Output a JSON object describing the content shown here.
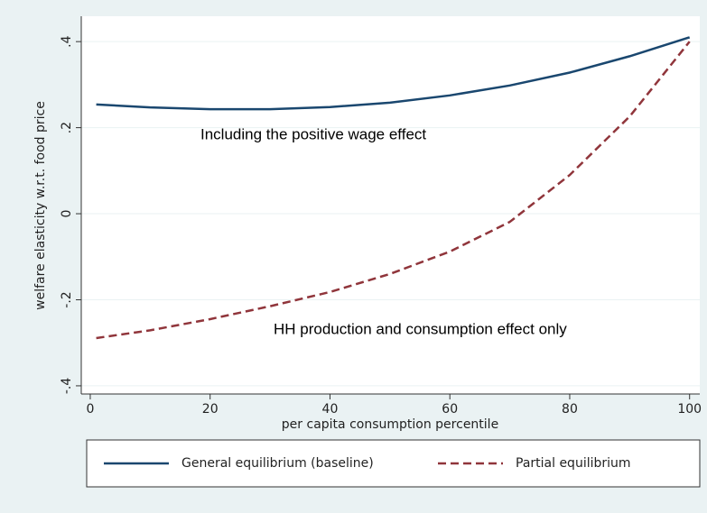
{
  "chart_data": {
    "type": "line",
    "xlabel": "per capita consumption percentile",
    "ylabel": "welfare elasticity w.r.t. food price",
    "x": [
      1,
      10,
      20,
      30,
      40,
      50,
      60,
      70,
      80,
      90,
      100
    ],
    "series": [
      {
        "name": "General equilibrium (baseline)",
        "color": "#1a476f",
        "dash": "solid",
        "values": [
          0.254,
          0.247,
          0.243,
          0.243,
          0.248,
          0.258,
          0.275,
          0.298,
          0.328,
          0.366,
          0.41
        ]
      },
      {
        "name": "Partial equilibrium",
        "color": "#90353b",
        "dash": "dashed",
        "values": [
          -0.289,
          -0.271,
          -0.245,
          -0.215,
          -0.182,
          -0.14,
          -0.088,
          -0.019,
          0.09,
          0.226,
          0.4
        ]
      }
    ],
    "annotations": [
      "Including the positive wage effect",
      "HH production and consumption effect only"
    ],
    "xlim": [
      -1.5,
      101.7
    ],
    "xticks": [
      0,
      20,
      40,
      60,
      80,
      100
    ],
    "ylim": [
      -0.419,
      0.459
    ],
    "yticks": [
      {
        "value": -0.4,
        "label": "-.4"
      },
      {
        "value": -0.2,
        "label": "-.2"
      },
      0,
      {
        "value": 0.2,
        "label": ".2"
      },
      {
        "value": 0.4,
        "label": ".4"
      }
    ],
    "grid": true,
    "legend": "bottom"
  }
}
